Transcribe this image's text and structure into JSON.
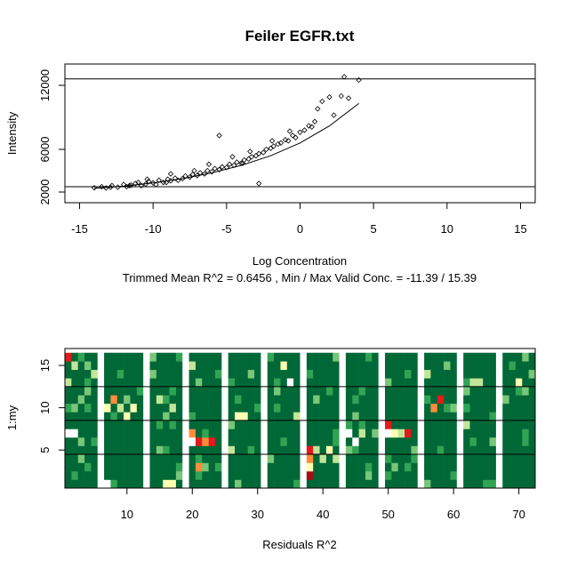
{
  "chart_data": [
    {
      "type": "scatter",
      "title": "Feiler EGFR.txt",
      "xlabel": "Log Concentration",
      "ylabel": "Intensity",
      "subtitle": "Trimmed Mean R^2 = 0.6456 , Min / Max Valid Conc. = -11.39 / 15.39",
      "xlim": [
        -16,
        16
      ],
      "ylim": [
        1000,
        14000
      ],
      "x_ticks": [
        -15,
        -10,
        -5,
        0,
        5,
        10,
        15
      ],
      "y_ticks": [
        2000,
        6000,
        12000
      ],
      "hlines": [
        2500,
        12600
      ],
      "fit_curve": {
        "x": [
          -14,
          -12,
          -10,
          -8,
          -6,
          -4,
          -2,
          0,
          2,
          4
        ],
        "y": [
          2350,
          2550,
          2850,
          3250,
          3800,
          4500,
          5400,
          6600,
          8200,
          10300
        ]
      },
      "points": {
        "x": [
          -14,
          -13.5,
          -13.2,
          -12.8,
          -12.4,
          -12,
          -11.8,
          -11.5,
          -11.2,
          -11,
          -10.8,
          -10.5,
          -10.3,
          -10,
          -9.8,
          -9.6,
          -9.3,
          -9,
          -8.8,
          -8.5,
          -8.3,
          -8,
          -7.8,
          -7.5,
          -7.3,
          -7,
          -6.8,
          -6.5,
          -6.3,
          -6,
          -5.8,
          -5.5,
          -5.3,
          -5,
          -4.8,
          -4.5,
          -4.3,
          -4,
          -3.8,
          -3.5,
          -3.3,
          -3,
          -2.8,
          -2.5,
          -2.3,
          -2,
          -1.8,
          -1.5,
          -1.3,
          -1,
          -0.8,
          -0.5,
          -0.3,
          0,
          0.3,
          0.6,
          1,
          1.2,
          1.5,
          2,
          2.3,
          2.8,
          3,
          3.3,
          4,
          -5.5,
          -2.8,
          -8.8,
          -10.4,
          -6.2,
          -3.4,
          -7.2,
          -9.1,
          -4.6,
          -11.6,
          -12.9,
          -1.9,
          0.8,
          -0.7,
          -3.9
        ],
        "y": [
          2400,
          2500,
          2380,
          2600,
          2450,
          2700,
          2500,
          2650,
          2800,
          2900,
          2600,
          2750,
          3000,
          2850,
          2700,
          3100,
          2900,
          3200,
          3050,
          3300,
          3100,
          3250,
          3500,
          3400,
          3650,
          3550,
          3800,
          3700,
          4000,
          3900,
          4200,
          4100,
          4350,
          4300,
          4600,
          4500,
          4800,
          4700,
          5000,
          5100,
          5300,
          5400,
          5600,
          5700,
          6000,
          6100,
          6300,
          6500,
          6600,
          6900,
          6800,
          7300,
          7100,
          7600,
          7800,
          8200,
          8600,
          9800,
          10500,
          10900,
          9200,
          11000,
          12800,
          10800,
          12500,
          7300,
          2800,
          3700,
          3200,
          4600,
          5800,
          4000,
          2900,
          5300,
          2600,
          2450,
          6800,
          8100,
          7700,
          4700
        ]
      }
    },
    {
      "type": "heatmap",
      "xlabel": "Residuals R^2",
      "ylabel": "1:my",
      "xlim": [
        0.5,
        72.5
      ],
      "ylim": [
        0.5,
        17
      ],
      "x_ticks": [
        10,
        20,
        30,
        40,
        50,
        60,
        70
      ],
      "y_ticks": [
        5,
        10,
        15
      ],
      "hlines": [
        4.5,
        8.5,
        12.5
      ],
      "n_cols": 72,
      "n_rows": 16,
      "white_columns": [
        6,
        13,
        19,
        25,
        31,
        37,
        43,
        49,
        55,
        61,
        67
      ],
      "colors": {
        "dark_green": "#006837",
        "green": "#31a354",
        "light_green": "#78c679",
        "pale_green": "#c2e699",
        "pale_yellow": "#ffffb2",
        "orange": "#fd8d3c",
        "red": "#e31a1c",
        "dark_red": "#a50f15",
        "white": "#ffffff"
      },
      "highlight_cells": [
        {
          "col": 1,
          "row": 16,
          "color": "red"
        },
        {
          "col": 2,
          "row": 15,
          "color": "pale_green"
        },
        {
          "col": 4,
          "row": 15,
          "color": "light_green"
        },
        {
          "col": 5,
          "row": 14,
          "color": "pale_green"
        },
        {
          "col": 1,
          "row": 13,
          "color": "pale_green"
        },
        {
          "col": 3,
          "row": 11,
          "color": "light_green"
        },
        {
          "col": 1,
          "row": 7,
          "color": "white"
        },
        {
          "col": 2,
          "row": 7,
          "color": "white"
        },
        {
          "col": 3,
          "row": 6,
          "color": "light_green"
        },
        {
          "col": 4,
          "row": 3,
          "color": "green"
        },
        {
          "col": 7,
          "row": 10,
          "color": "pale_yellow"
        },
        {
          "col": 8,
          "row": 11,
          "color": "orange"
        },
        {
          "col": 9,
          "row": 10,
          "color": "pale_green"
        },
        {
          "col": 10,
          "row": 9,
          "color": "pale_yellow"
        },
        {
          "col": 11,
          "row": 10,
          "color": "pale_yellow"
        },
        {
          "col": 7,
          "row": 1,
          "color": "white"
        },
        {
          "col": 14,
          "row": 16,
          "color": "light_green"
        },
        {
          "col": 15,
          "row": 11,
          "color": "pale_green"
        },
        {
          "col": 16,
          "row": 9,
          "color": "light_green"
        },
        {
          "col": 17,
          "row": 10,
          "color": "pale_green"
        },
        {
          "col": 16,
          "row": 1,
          "color": "pale_yellow"
        },
        {
          "col": 17,
          "row": 1,
          "color": "pale_yellow"
        },
        {
          "col": 20,
          "row": 7,
          "color": "orange"
        },
        {
          "col": 20,
          "row": 6,
          "color": "white"
        },
        {
          "col": 21,
          "row": 6,
          "color": "red"
        },
        {
          "col": 22,
          "row": 6,
          "color": "orange"
        },
        {
          "col": 23,
          "row": 6,
          "color": "red"
        },
        {
          "col": 21,
          "row": 3,
          "color": "orange"
        },
        {
          "col": 20,
          "row": 15,
          "color": "pale_green"
        },
        {
          "col": 27,
          "row": 9,
          "color": "pale_yellow"
        },
        {
          "col": 28,
          "row": 9,
          "color": "pale_yellow"
        },
        {
          "col": 26,
          "row": 5,
          "color": "pale_green"
        },
        {
          "col": 29,
          "row": 14,
          "color": "light_green"
        },
        {
          "col": 34,
          "row": 15,
          "color": "pale_yellow"
        },
        {
          "col": 35,
          "row": 13,
          "color": "white"
        },
        {
          "col": 36,
          "row": 9,
          "color": "pale_green"
        },
        {
          "col": 38,
          "row": 5,
          "color": "red"
        },
        {
          "col": 38,
          "row": 4,
          "color": "orange"
        },
        {
          "col": 38,
          "row": 3,
          "color": "pale_yellow"
        },
        {
          "col": 38,
          "row": 2,
          "color": "dark_red"
        },
        {
          "col": 39,
          "row": 5,
          "color": "pale_green"
        },
        {
          "col": 40,
          "row": 4,
          "color": "pale_green"
        },
        {
          "col": 41,
          "row": 5,
          "color": "pale_yellow"
        },
        {
          "col": 42,
          "row": 4,
          "color": "pale_green"
        },
        {
          "col": 44,
          "row": 7,
          "color": "white"
        },
        {
          "col": 45,
          "row": 6,
          "color": "white"
        },
        {
          "col": 46,
          "row": 7,
          "color": "pale_green"
        },
        {
          "col": 50,
          "row": 8,
          "color": "red"
        },
        {
          "col": 51,
          "row": 7,
          "color": "pale_yellow"
        },
        {
          "col": 52,
          "row": 7,
          "color": "pale_green"
        },
        {
          "col": 53,
          "row": 7,
          "color": "red"
        },
        {
          "col": 50,
          "row": 7,
          "color": "white"
        },
        {
          "col": 54,
          "row": 5,
          "color": "light_green"
        },
        {
          "col": 58,
          "row": 11,
          "color": "red"
        },
        {
          "col": 57,
          "row": 10,
          "color": "orange"
        },
        {
          "col": 56,
          "row": 14,
          "color": "pale_green"
        },
        {
          "col": 59,
          "row": 15,
          "color": "light_green"
        },
        {
          "col": 63,
          "row": 13,
          "color": "pale_green"
        },
        {
          "col": 64,
          "row": 13,
          "color": "pale_green"
        },
        {
          "col": 62,
          "row": 8,
          "color": "pale_green"
        },
        {
          "col": 66,
          "row": 6,
          "color": "light_green"
        },
        {
          "col": 70,
          "row": 13,
          "color": "pale_yellow"
        },
        {
          "col": 71,
          "row": 12,
          "color": "light_green"
        },
        {
          "col": 69,
          "row": 15,
          "color": "green"
        }
      ]
    }
  ]
}
